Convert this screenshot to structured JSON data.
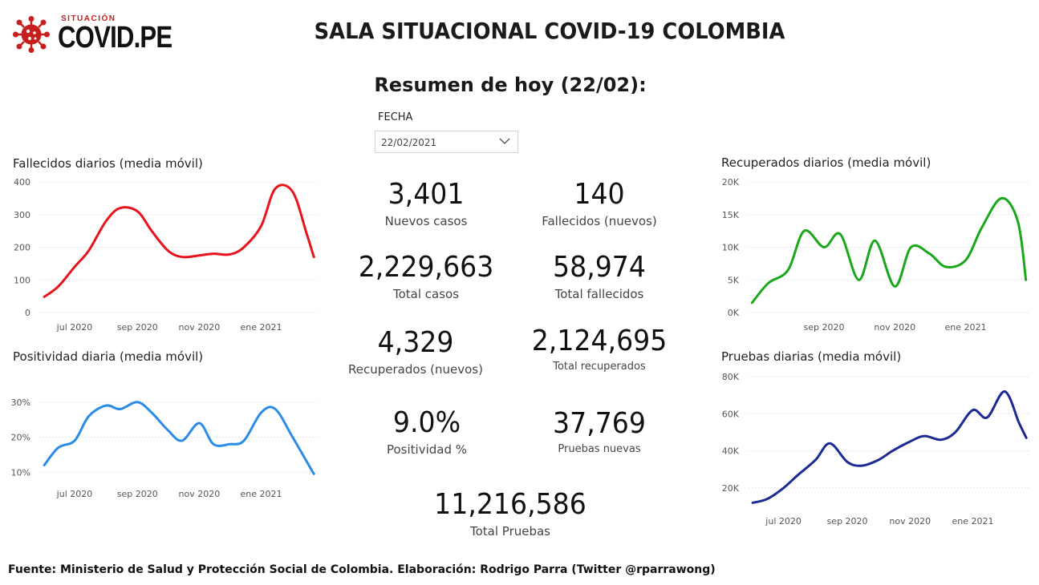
{
  "logo": {
    "small_text": "SITUACIÓN",
    "big_text": "COVID.PE",
    "icon": "virus-icon"
  },
  "title": "SALA SITUACIONAL COVID-19 COLOMBIA",
  "subtitle": "Resumen de hoy (22/02):",
  "filter": {
    "label": "FECHA",
    "value": "22/02/2021",
    "icon": "chevron-down-icon"
  },
  "kpis": {
    "nuevos_casos": {
      "value": "3,401",
      "label": "Nuevos casos"
    },
    "fallecidos_nuevos": {
      "value": "140",
      "label": "Fallecidos (nuevos)"
    },
    "total_casos": {
      "value": "2,229,663",
      "label": "Total casos"
    },
    "total_fallecidos": {
      "value": "58,974",
      "label": "Total fallecidos"
    },
    "recuperados_nuevos": {
      "value": "4,329",
      "label": "Recuperados (nuevos)"
    },
    "total_recuperados": {
      "value": "2,124,695",
      "label": "Total recuperados"
    },
    "positividad": {
      "value": "9.0%",
      "label": "Positividad %"
    },
    "pruebas_nuevas": {
      "value": "37,769",
      "label": "Pruebas nuevas"
    },
    "total_pruebas": {
      "value": "11,216,586",
      "label": "Total Pruebas"
    }
  },
  "colors": {
    "fallecidos": "#e8141c",
    "positividad": "#2b8ce8",
    "recuperados": "#1aa81a",
    "pruebas": "#1c2a93"
  },
  "source": "Fuente: Ministerio de Salud y Protección Social de Colombia. Elaboración: Rodrigo Parra (Twitter @rparrawong)",
  "chart_data": [
    {
      "id": "fallecidos",
      "type": "line",
      "title": "Fallecidos diarios (media móvil)",
      "x": [
        "2020-06-01",
        "2020-06-15",
        "2020-07-01",
        "2020-07-15",
        "2020-08-01",
        "2020-08-15",
        "2020-09-01",
        "2020-09-15",
        "2020-10-01",
        "2020-10-15",
        "2020-11-01",
        "2020-11-15",
        "2020-12-01",
        "2020-12-15",
        "2021-01-01",
        "2021-01-15",
        "2021-02-01",
        "2021-02-15",
        "2021-02-22"
      ],
      "values": [
        48,
        80,
        140,
        190,
        280,
        320,
        310,
        250,
        190,
        170,
        175,
        180,
        178,
        200,
        265,
        380,
        370,
        240,
        170
      ],
      "ylim": [
        0,
        400
      ],
      "yticks": [
        0,
        100,
        200,
        300,
        400
      ],
      "ytick_labels": [
        "0",
        "100",
        "200",
        "300",
        "400"
      ],
      "xticks": [
        "2020-07-01",
        "2020-09-01",
        "2020-11-01",
        "2021-01-01"
      ],
      "xtick_labels": [
        "jul 2020",
        "sep 2020",
        "nov 2020",
        "ene 2021"
      ]
    },
    {
      "id": "positividad",
      "type": "line",
      "title": "Positividad diaria (media móvil)",
      "x": [
        "2020-06-01",
        "2020-06-15",
        "2020-07-01",
        "2020-07-15",
        "2020-08-01",
        "2020-08-15",
        "2020-09-01",
        "2020-09-15",
        "2020-10-01",
        "2020-10-15",
        "2020-11-01",
        "2020-11-15",
        "2020-12-01",
        "2020-12-15",
        "2021-01-01",
        "2021-01-15",
        "2021-02-01",
        "2021-02-15",
        "2021-02-22"
      ],
      "values": [
        12,
        17,
        19,
        26,
        29,
        28,
        30,
        27,
        22,
        19,
        24,
        18,
        18,
        19,
        27,
        28,
        20,
        13,
        9.5
      ],
      "ylim": [
        8,
        32
      ],
      "yticks": [
        10,
        20,
        30
      ],
      "ytick_labels": [
        "10%",
        "20%",
        "30%"
      ],
      "xticks": [
        "2020-07-01",
        "2020-09-01",
        "2020-11-01",
        "2021-01-01"
      ],
      "xtick_labels": [
        "jul 2020",
        "sep 2020",
        "nov 2020",
        "ene 2021"
      ]
    },
    {
      "id": "recuperados",
      "type": "line",
      "title": "Recuperados diarios (media móvil)",
      "x": [
        "2020-07-01",
        "2020-07-15",
        "2020-08-01",
        "2020-08-15",
        "2020-09-01",
        "2020-09-15",
        "2020-10-01",
        "2020-10-15",
        "2020-11-01",
        "2020-11-15",
        "2020-12-01",
        "2020-12-15",
        "2021-01-01",
        "2021-01-15",
        "2021-02-01",
        "2021-02-15",
        "2021-02-22"
      ],
      "values": [
        1500,
        4500,
        6500,
        12500,
        10000,
        12000,
        5000,
        11000,
        4000,
        10000,
        9000,
        7000,
        8000,
        13000,
        17500,
        14000,
        5000
      ],
      "ylim": [
        0,
        20000
      ],
      "yticks": [
        0,
        5000,
        10000,
        15000,
        20000
      ],
      "ytick_labels": [
        "0K",
        "5K",
        "10K",
        "15K",
        "20K"
      ],
      "xticks": [
        "2020-09-01",
        "2020-11-01",
        "2021-01-01"
      ],
      "xtick_labels": [
        "sep 2020",
        "nov 2020",
        "ene 2021"
      ]
    },
    {
      "id": "pruebas",
      "type": "line",
      "title": "Pruebas diarias (media móvil)",
      "x": [
        "2020-06-01",
        "2020-06-15",
        "2020-07-01",
        "2020-07-15",
        "2020-08-01",
        "2020-08-15",
        "2020-09-01",
        "2020-09-15",
        "2020-10-01",
        "2020-10-15",
        "2020-11-01",
        "2020-11-15",
        "2020-12-01",
        "2020-12-15",
        "2021-01-01",
        "2021-01-15",
        "2021-02-01",
        "2021-02-15",
        "2021-02-22"
      ],
      "values": [
        12000,
        14000,
        20000,
        27000,
        35000,
        44000,
        34000,
        32000,
        35000,
        40000,
        45000,
        48000,
        46000,
        50000,
        62000,
        58000,
        72000,
        55000,
        47000
      ],
      "ylim": [
        10000,
        80000
      ],
      "yticks": [
        20000,
        40000,
        60000,
        80000
      ],
      "ytick_labels": [
        "20K",
        "40K",
        "60K",
        "80K"
      ],
      "xticks": [
        "2020-07-01",
        "2020-09-01",
        "2020-11-01",
        "2021-01-01"
      ],
      "xtick_labels": [
        "jul 2020",
        "sep 2020",
        "nov 2020",
        "ene 2021"
      ]
    }
  ]
}
